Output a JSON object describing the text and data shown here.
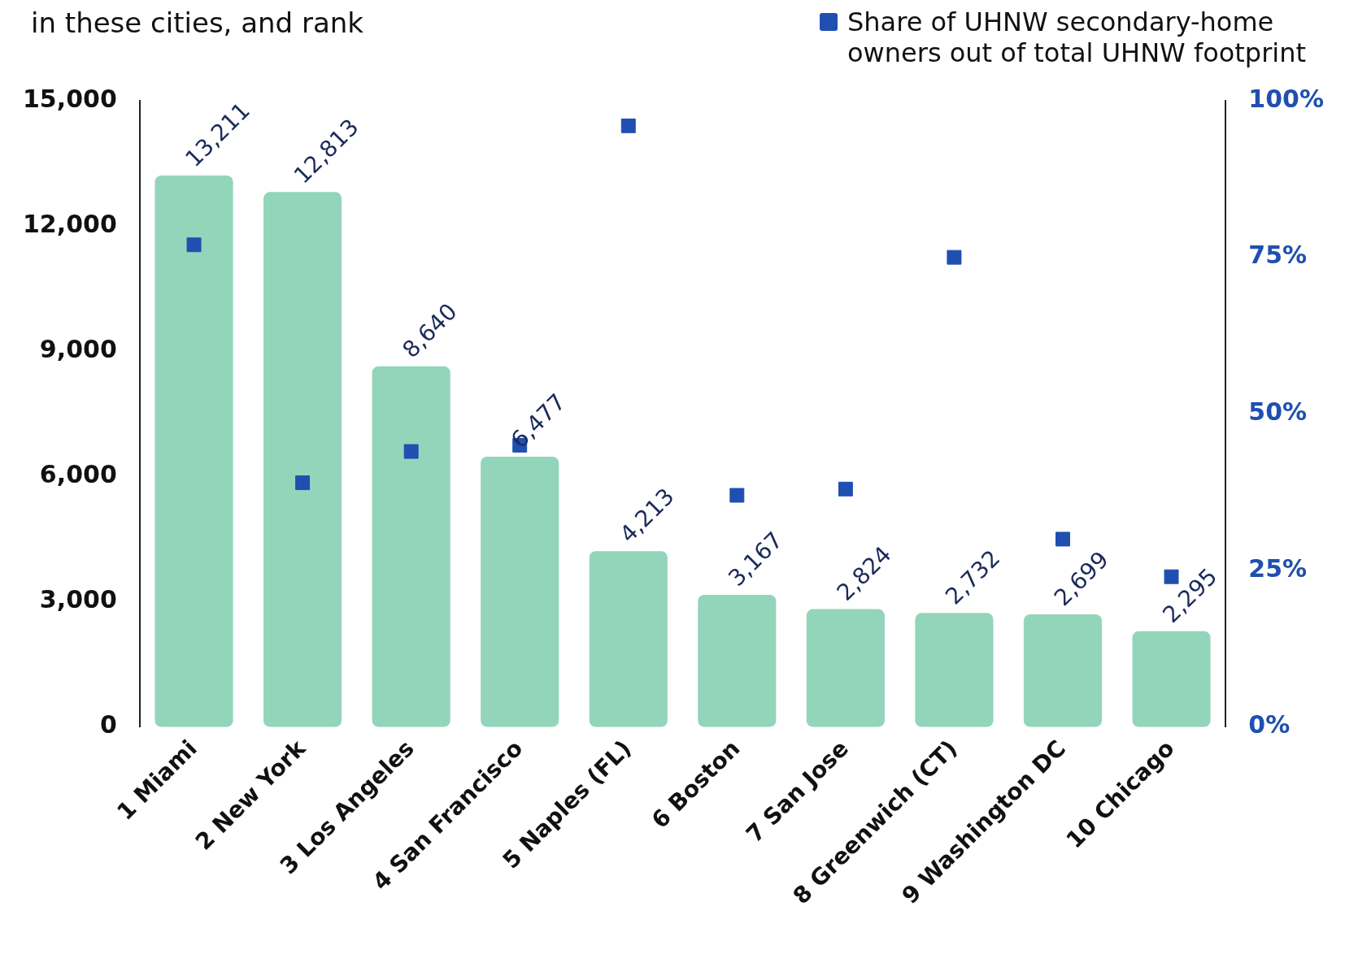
{
  "chart_data": {
    "type": "bar",
    "title": "in these cities, and rank",
    "categories": [
      "1 Miami",
      "2 New York",
      "3 Los Angeles",
      "4 San Francisco",
      "5 Naples (FL)",
      "6 Boston",
      "7 San Jose",
      "8 Greenwich (CT)",
      "9 Washington DC",
      "10 Chicago"
    ],
    "series": [
      {
        "color": "#93d5bb",
        "values": [
          13211,
          12813,
          8640,
          6477,
          4213,
          3167,
          2824,
          2732,
          2699,
          2295
        ],
        "value_labels": [
          "13,211",
          "12,813",
          "8,640",
          "6,477",
          "4,213",
          "3,167",
          "2,824",
          "2,732",
          "2,699",
          "2,295"
        ]
      },
      {
        "type": "scatter",
        "name": "Share of UHNW secondary-home owners out of total UHNW footprint",
        "color": "#1f4fb0",
        "axis": "y2",
        "marker": "square",
        "values": [
          77,
          39,
          44,
          45,
          96,
          37,
          38,
          75,
          30,
          24
        ]
      }
    ],
    "ylim": [
      0,
      15000
    ],
    "yticks": [
      {
        "value": 0,
        "label": "0"
      },
      {
        "value": 3000,
        "label": "3,000"
      },
      {
        "value": 6000,
        "label": "6,000"
      },
      {
        "value": 9000,
        "label": "9,000"
      },
      {
        "value": 12000,
        "label": "12,000"
      },
      {
        "value": 15000,
        "label": "15,000"
      }
    ],
    "y2lim": [
      0,
      100
    ],
    "y2ticks": [
      {
        "value": 0,
        "label": "0%"
      },
      {
        "value": 25,
        "label": "25%"
      },
      {
        "value": 50,
        "label": "50%"
      },
      {
        "value": 75,
        "label": "75%"
      },
      {
        "value": 100,
        "label": "100%"
      }
    ],
    "grid": false,
    "legend": "top right"
  }
}
